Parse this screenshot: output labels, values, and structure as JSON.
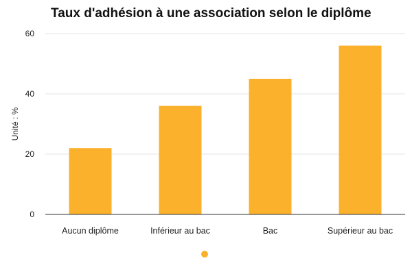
{
  "chart_data": {
    "type": "bar",
    "title": "Taux d'adhésion à une association selon le diplôme",
    "xlabel": "",
    "ylabel": "Unité : %",
    "categories": [
      "Aucun diplôme",
      "Inférieur au bac",
      "Bac",
      "Supérieur au bac"
    ],
    "values": [
      22,
      36,
      45,
      56
    ],
    "ylim": [
      0,
      60
    ],
    "yticks": [
      0,
      20,
      40,
      60
    ],
    "grid": true,
    "legend": "bottom",
    "bar_color": "#FBB12B"
  }
}
